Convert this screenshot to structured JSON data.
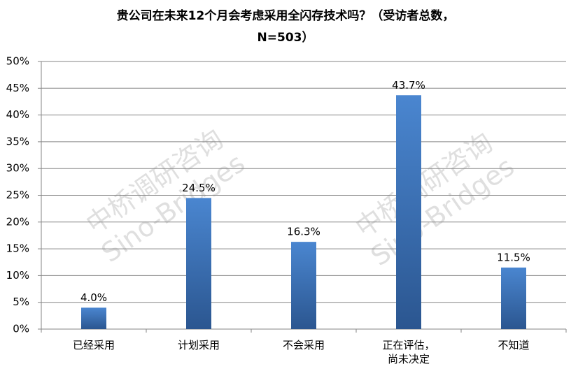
{
  "chart_data": {
    "type": "bar",
    "title_lines": [
      "贵公司在未来12个月会考虑采用全闪存技术吗？（受访者总数，",
      "N=503）"
    ],
    "categories": [
      "已经采用",
      "计划采用",
      "不会采用",
      "正在评估，尚未决定",
      "不知道"
    ],
    "values": [
      4.0,
      24.5,
      16.3,
      43.7,
      11.5
    ],
    "value_labels": [
      "4.0%",
      "24.5%",
      "16.3%",
      "43.7%",
      "11.5%"
    ],
    "color": "#4a86d0",
    "ylim": [
      0,
      50
    ],
    "yticks": [
      {
        "value": 0,
        "label": "0%"
      },
      {
        "value": 5,
        "label": "5%"
      },
      {
        "value": 10,
        "label": "10%"
      },
      {
        "value": 15,
        "label": "15%"
      },
      {
        "value": 20,
        "label": "20%"
      },
      {
        "value": 25,
        "label": "25%"
      },
      {
        "value": 30,
        "label": "30%"
      },
      {
        "value": 35,
        "label": "35%"
      },
      {
        "value": 40,
        "label": "40%"
      },
      {
        "value": 45,
        "label": "45%"
      },
      {
        "value": 50,
        "label": "50%"
      }
    ],
    "grid": true,
    "watermark": [
      "中桥调研咨询",
      "Sino-Bridges"
    ]
  }
}
